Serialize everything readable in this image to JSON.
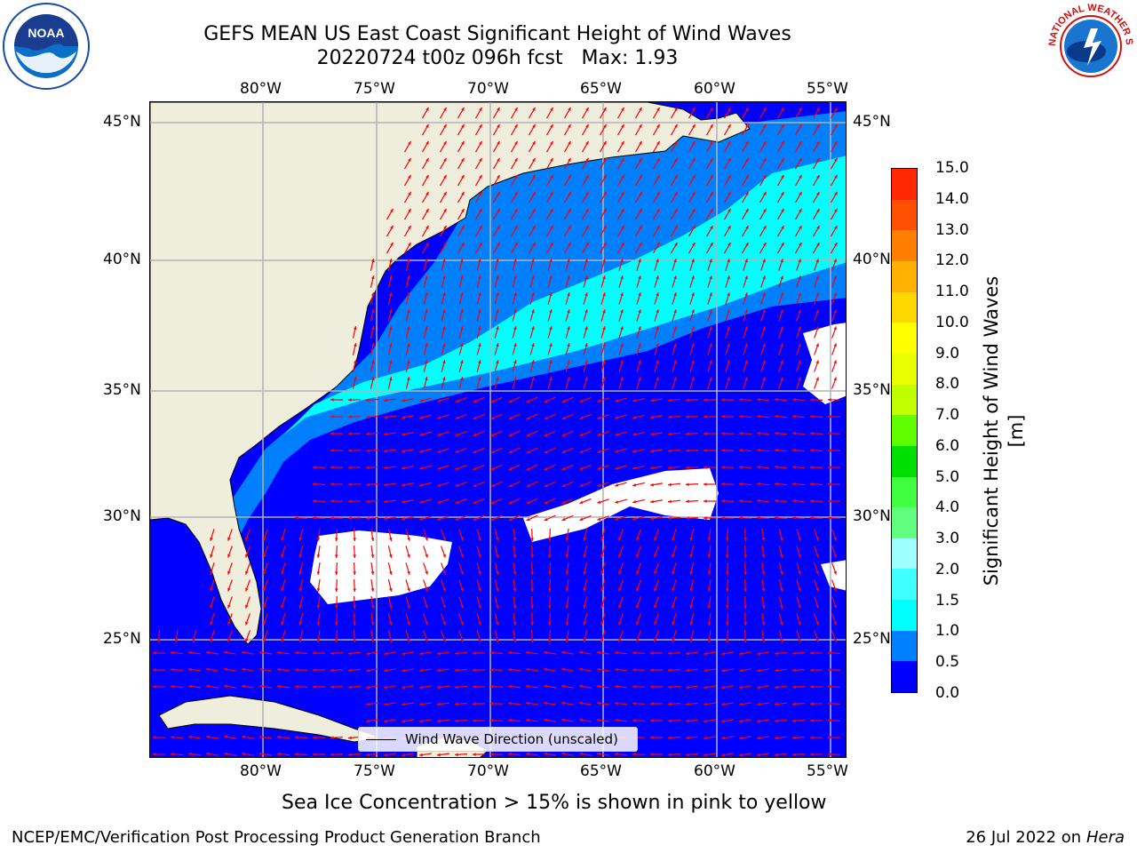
{
  "title": "GEFS MEAN US East Coast Significant Height of Wind Waves",
  "subtitle": "20220724 t00z 096h fcst   Max: 1.93",
  "lon_labels": [
    "80°W",
    "75°W",
    "70°W",
    "65°W",
    "60°W",
    "55°W"
  ],
  "lat_labels": [
    "45°N",
    "40°N",
    "35°N",
    "30°N",
    "25°N"
  ],
  "legend": {
    "label": "Wind Wave Direction (unscaled)"
  },
  "colorbar": {
    "title": "Significant Height of Wind Waves [m]",
    "tick_labels": [
      "0.0",
      "0.5",
      "1.0",
      "1.5",
      "2.0",
      "3.0",
      "4.0",
      "5.0",
      "6.0",
      "7.0",
      "8.0",
      "9.0",
      "10.0",
      "11.0",
      "12.0",
      "13.0",
      "14.0",
      "15.0"
    ],
    "colors": [
      "#0000ff",
      "#0080ff",
      "#00ffff",
      "#40ffff",
      "#a0ffff",
      "#60ff80",
      "#40ff40",
      "#00e000",
      "#60ff00",
      "#c0ff00",
      "#e8ff00",
      "#ffff00",
      "#ffd800",
      "#ffb000",
      "#ff8000",
      "#ff5000",
      "#ff2800"
    ]
  },
  "map_colors": {
    "land": "#efeddc",
    "ocean_low": "#0000ff",
    "ocean_mid": "#0080ff",
    "ocean_high": "#00ffff",
    "calm": "#ffffff",
    "arrow": "#ff0000",
    "coast": "#000000",
    "grid": "#b4b4b4"
  },
  "note": "Sea Ice Concentration > 15% is shown in pink to yellow",
  "footer": {
    "left": "NCEP/EMC/Verification Post Processing Product Generation Branch",
    "date": "26 Jul 2022 on ",
    "machine": "Hera"
  },
  "logos": {
    "noaa_text": "NOAA",
    "nws_text": "NATIONAL WEATHER SERVICE"
  }
}
